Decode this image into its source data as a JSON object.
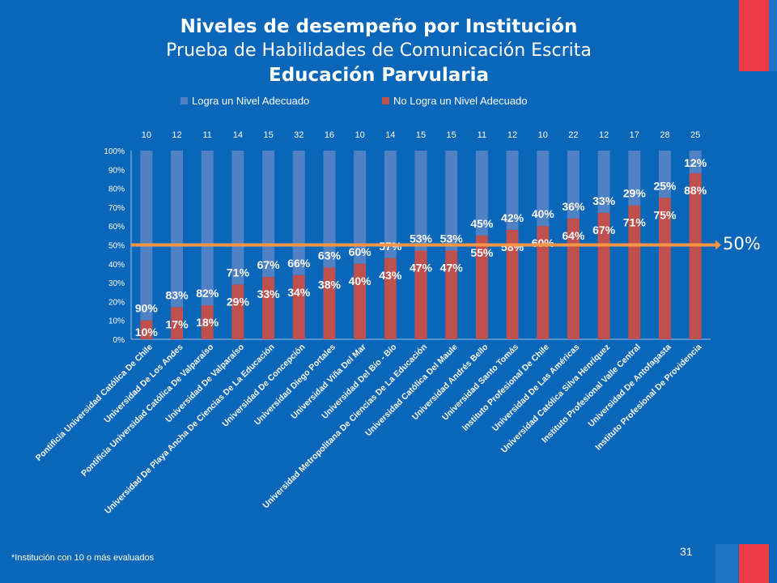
{
  "title": {
    "line1": "Niveles de desempeño por Institución",
    "line2": "Prueba de Habilidades de Comunicación Escrita",
    "line3": "Educación Parvularia"
  },
  "reference_line_label": "50%",
  "footnote": "*Institución con 10 o más evaluados",
  "page_number": "31",
  "colors": {
    "background": "#0a66b9",
    "series_logra": "#4f81c4",
    "series_no_logra": "#c0504d",
    "reference_line": "#f79646",
    "accent_red": "#ec3b44"
  },
  "chart_data": {
    "type": "bar",
    "stacked": true,
    "percent_scale": true,
    "legend": {
      "position": "top"
    },
    "categories": [
      "Pontificia Universidad Católica De Chile",
      "Universidad De Los Andes",
      "Pontificia Universidad Católica De Valparaíso",
      "Universidad De Valparaíso",
      "Universidad De Playa Ancha De Ciencias De La Educación",
      "Universidad De Concepción",
      "Universidad Diego Portales",
      "Universidad Viña Del Mar",
      "Universidad Del Bío - Bío",
      "Universidad Metropolitana De Ciencias De La Educación",
      "Universidad Católica Del  Maule",
      "Universidad Andrés Bello",
      "Universidad Santo Tomás",
      "Instituto Profesional De Chile",
      "Universidad De Las Américas",
      "Universidad Católica Silva Henríquez",
      "Instituto Profesional  Valle Central",
      "Universidad De Antofagasta",
      "Instituto Profesional De Providencia"
    ],
    "counts": [
      "10",
      "12",
      "11",
      "14",
      "15",
      "32",
      "16",
      "10",
      "14",
      "15",
      "15",
      "11",
      "12",
      "10",
      "22",
      "12",
      "17",
      "28",
      "25"
    ],
    "series": [
      {
        "name": "Logra un Nivel Adecuado",
        "values": [
          90,
          83,
          82,
          71,
          67,
          66,
          63,
          60,
          57,
          53,
          53,
          45,
          42,
          40,
          36,
          33,
          29,
          25,
          12
        ],
        "labels": [
          "90%",
          "83%",
          "82%",
          "71%",
          "67%",
          "66%",
          "63%",
          "60%",
          "57%",
          "53%",
          "53%",
          "45%",
          "42%",
          "40%",
          "36%",
          "33%",
          "29%",
          "25%",
          "12%"
        ]
      },
      {
        "name": "No Logra un Nivel Adecuado",
        "values": [
          10,
          17,
          18,
          29,
          33,
          34,
          38,
          40,
          43,
          47,
          47,
          55,
          58,
          60,
          64,
          67,
          71,
          75,
          88
        ],
        "labels": [
          "10%",
          "17%",
          "18%",
          "29%",
          "33%",
          "34%",
          "38%",
          "40%",
          "43%",
          "47%",
          "47%",
          "55%",
          "58%",
          "60%",
          "64%",
          "67%",
          "71%",
          "75%",
          "88%"
        ]
      }
    ],
    "y_ticks": [
      "0%",
      "10%",
      "20%",
      "30%",
      "40%",
      "50%",
      "60%",
      "70%",
      "80%",
      "90%",
      "100%"
    ],
    "ylim": [
      0,
      100
    ],
    "reference_line": 50
  }
}
